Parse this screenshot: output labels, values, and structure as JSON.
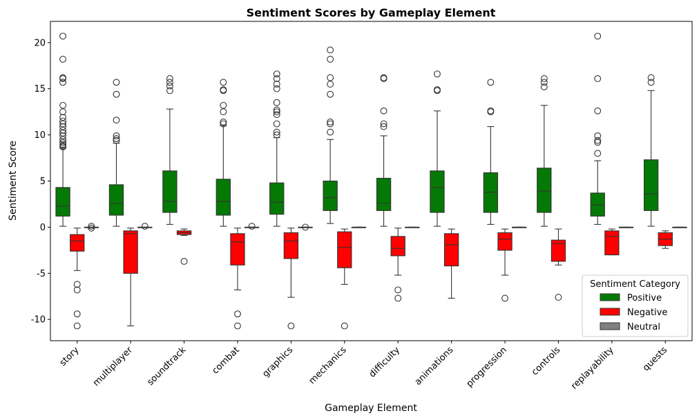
{
  "chart_data": {
    "type": "box",
    "title": "Sentiment Scores by Gameplay Element",
    "xlabel": "Gameplay Element",
    "ylabel": "Sentiment Score",
    "ylim": [
      -12.3,
      22.3
    ],
    "yticks": [
      -10,
      -5,
      0,
      5,
      10,
      15,
      20
    ],
    "categories": [
      "story",
      "multiplayer",
      "soundtrack",
      "combat",
      "graphics",
      "mechanics",
      "difficulty",
      "animations",
      "progression",
      "controls",
      "replayability",
      "quests"
    ],
    "legend": {
      "title": "Sentiment Category",
      "position": "lower-right",
      "entries": [
        {
          "label": "Positive",
          "color": "#057905"
        },
        {
          "label": "Negative",
          "color": "#ff0000"
        },
        {
          "label": "Neutral",
          "color": "#808080"
        }
      ]
    },
    "series": [
      {
        "name": "Positive",
        "color": "#057905",
        "boxes": [
          {
            "min": 0.1,
            "q1": 1.2,
            "median": 2.3,
            "q3": 4.3,
            "max": 8.6,
            "outliers": [
              8.7,
              8.8,
              9.0,
              9.2,
              9.5,
              9.9,
              10.2,
              10.5,
              10.9,
              11.2,
              11.5,
              11.9,
              12.5,
              13.2,
              15.7,
              16.1,
              16.2,
              18.2,
              20.7
            ]
          },
          {
            "min": 0.1,
            "q1": 1.3,
            "median": 2.6,
            "q3": 4.6,
            "max": 9.1,
            "outliers": [
              9.4,
              9.6,
              9.9,
              11.6,
              14.4,
              15.7
            ]
          },
          {
            "min": 0.3,
            "q1": 1.6,
            "median": 2.8,
            "q3": 6.1,
            "max": 12.8,
            "outliers": [
              14.8,
              15.3,
              15.7,
              16.1
            ]
          },
          {
            "min": 0.1,
            "q1": 1.3,
            "median": 2.8,
            "q3": 5.2,
            "max": 11.0,
            "outliers": [
              11.2,
              11.4,
              12.5,
              13.2,
              14.8,
              14.9,
              15.7
            ]
          },
          {
            "min": 0.1,
            "q1": 1.4,
            "median": 2.7,
            "q3": 4.8,
            "max": 9.7,
            "outliers": [
              10.0,
              10.3,
              11.2,
              12.2,
              12.5,
              12.7,
              13.5,
              15.0,
              15.5,
              16.1,
              16.6
            ]
          },
          {
            "min": 0.4,
            "q1": 1.8,
            "median": 3.2,
            "q3": 5.0,
            "max": 9.5,
            "outliers": [
              10.3,
              11.2,
              11.4,
              14.4,
              15.5,
              16.2,
              18.2,
              19.2
            ]
          },
          {
            "min": 0.1,
            "q1": 1.8,
            "median": 2.6,
            "q3": 5.3,
            "max": 9.9,
            "outliers": [
              10.9,
              11.2,
              12.6,
              16.1,
              16.2
            ]
          },
          {
            "min": 0.1,
            "q1": 1.6,
            "median": 4.3,
            "q3": 6.1,
            "max": 12.6,
            "outliers": [
              14.8,
              14.9,
              16.6
            ]
          },
          {
            "min": 0.3,
            "q1": 1.6,
            "median": 3.8,
            "q3": 5.9,
            "max": 10.9,
            "outliers": [
              12.5,
              12.6,
              15.7
            ]
          },
          {
            "min": 0.1,
            "q1": 1.6,
            "median": 3.9,
            "q3": 6.4,
            "max": 13.2,
            "outliers": [
              15.2,
              15.7,
              16.1
            ]
          },
          {
            "min": 0.3,
            "q1": 1.2,
            "median": 2.4,
            "q3": 3.7,
            "max": 7.2,
            "outliers": [
              8.0,
              9.2,
              9.4,
              9.9,
              12.6,
              16.1,
              20.7
            ]
          },
          {
            "min": 0.1,
            "q1": 1.8,
            "median": 3.6,
            "q3": 7.3,
            "max": 14.8,
            "outliers": [
              15.7,
              16.2
            ]
          }
        ]
      },
      {
        "name": "Negative",
        "color": "#ff0000",
        "boxes": [
          {
            "min": -4.7,
            "q1": -2.6,
            "median": -1.5,
            "q3": -0.8,
            "max": -0.1,
            "outliers": [
              -6.2,
              -6.8,
              -9.4,
              -10.7
            ]
          },
          {
            "min": -10.7,
            "q1": -5.0,
            "median": -0.7,
            "q3": -0.4,
            "max": -0.1,
            "outliers": []
          },
          {
            "min": -0.9,
            "q1": -0.8,
            "median": -0.6,
            "q3": -0.4,
            "max": -0.2,
            "outliers": [
              -3.7
            ]
          },
          {
            "min": -6.8,
            "q1": -4.1,
            "median": -1.6,
            "q3": -0.7,
            "max": -0.1,
            "outliers": [
              -9.4,
              -10.7
            ]
          },
          {
            "min": -7.6,
            "q1": -3.4,
            "median": -1.5,
            "q3": -0.6,
            "max": -0.1,
            "outliers": [
              -10.7
            ]
          },
          {
            "min": -6.2,
            "q1": -4.4,
            "median": -2.2,
            "q3": -0.5,
            "max": -0.2,
            "outliers": [
              -10.7
            ]
          },
          {
            "min": -5.2,
            "q1": -3.1,
            "median": -2.3,
            "q3": -1.0,
            "max": -0.1,
            "outliers": [
              -6.8,
              -7.7
            ]
          },
          {
            "min": -7.7,
            "q1": -4.2,
            "median": -1.9,
            "q3": -0.7,
            "max": -0.2,
            "outliers": []
          },
          {
            "min": -5.2,
            "q1": -2.5,
            "median": -1.3,
            "q3": -0.6,
            "max": -0.2,
            "outliers": [
              -7.7
            ]
          },
          {
            "min": -4.1,
            "q1": -3.7,
            "median": -1.8,
            "q3": -1.4,
            "max": -0.2,
            "outliers": [
              -7.6
            ]
          },
          {
            "min": -3.0,
            "q1": -3.0,
            "median": -1.0,
            "q3": -0.4,
            "max": -0.2,
            "outliers": []
          },
          {
            "min": -2.3,
            "q1": -2.0,
            "median": -1.3,
            "q3": -0.6,
            "max": -0.4,
            "outliers": []
          }
        ]
      },
      {
        "name": "Neutral",
        "color": "#808080",
        "boxes": [
          {
            "min": 0,
            "q1": 0,
            "median": 0,
            "q3": 0,
            "max": 0,
            "outliers": [
              0.1,
              -0.1
            ]
          },
          {
            "min": 0,
            "q1": 0,
            "median": 0,
            "q3": 0,
            "max": 0,
            "outliers": [
              0.1
            ]
          },
          null,
          {
            "min": 0,
            "q1": 0,
            "median": 0,
            "q3": 0,
            "max": 0,
            "outliers": [
              0.1
            ]
          },
          {
            "min": 0,
            "q1": 0,
            "median": 0,
            "q3": 0,
            "max": 0,
            "outliers": [
              0.0
            ]
          },
          {
            "min": 0,
            "q1": 0,
            "median": 0,
            "q3": 0,
            "max": 0,
            "outliers": []
          },
          {
            "min": 0,
            "q1": 0,
            "median": 0,
            "q3": 0,
            "max": 0,
            "outliers": []
          },
          null,
          {
            "min": 0,
            "q1": 0,
            "median": 0,
            "q3": 0,
            "max": 0,
            "outliers": []
          },
          null,
          {
            "min": 0,
            "q1": 0,
            "median": 0,
            "q3": 0,
            "max": 0,
            "outliers": []
          },
          {
            "min": 0,
            "q1": 0,
            "median": 0,
            "q3": 0,
            "max": 0,
            "outliers": []
          }
        ]
      }
    ]
  }
}
